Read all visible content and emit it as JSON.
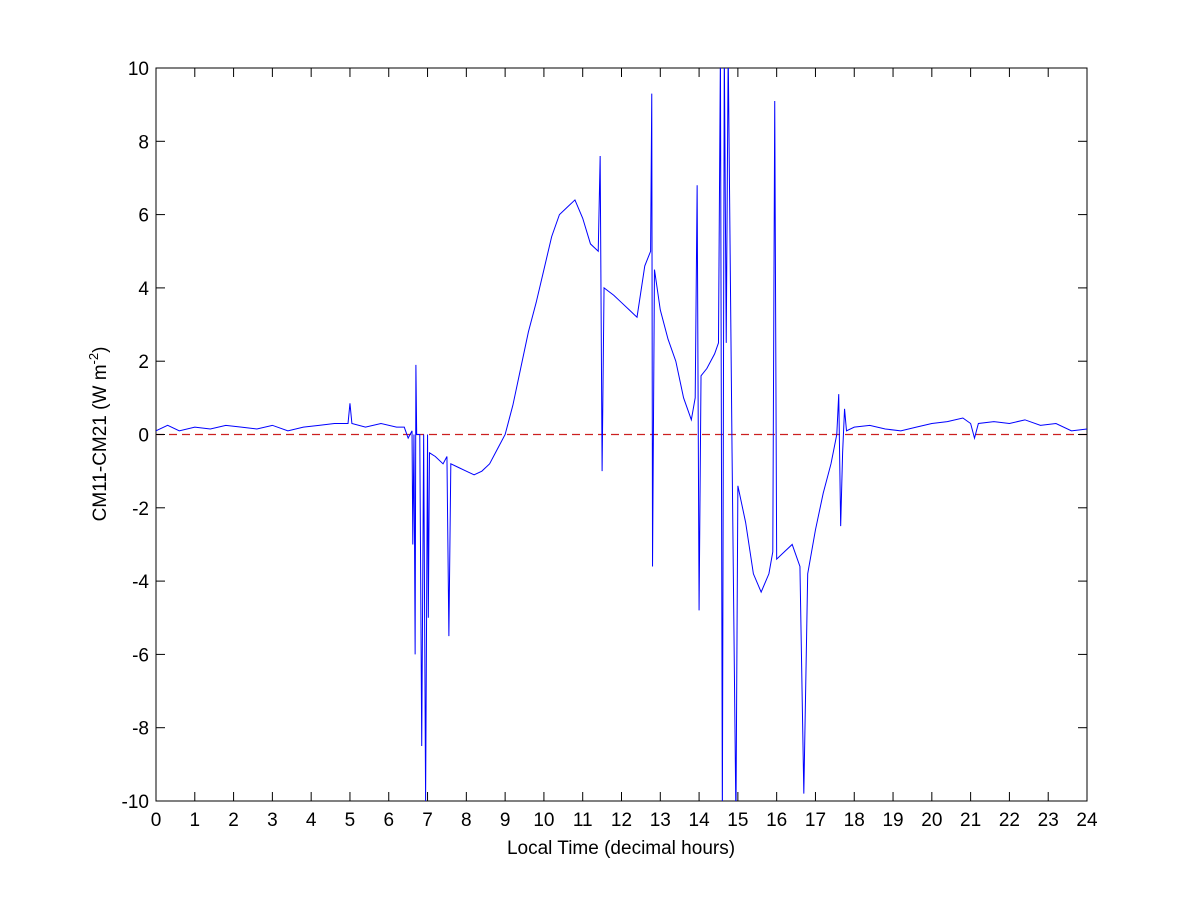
{
  "chart_data": {
    "type": "line",
    "xlabel": "Local Time (decimal hours)",
    "ylabel": [
      "CM11-CM21 (W m",
      "-2",
      ")"
    ],
    "x": [
      0,
      0.3,
      0.6,
      1,
      1.4,
      1.8,
      2.2,
      2.6,
      3,
      3.4,
      3.8,
      4.2,
      4.6,
      4.95,
      5,
      5.05,
      5.4,
      5.8,
      6.2,
      6.4,
      6.5,
      6.6,
      6.62,
      6.65,
      6.68,
      6.7,
      6.72,
      6.8,
      6.85,
      6.9,
      6.95,
      7,
      7.02,
      7.05,
      7.2,
      7.4,
      7.5,
      7.55,
      7.6,
      7.8,
      8,
      8.2,
      8.4,
      8.6,
      8.8,
      9,
      9.2,
      9.4,
      9.6,
      9.8,
      10,
      10.2,
      10.4,
      10.6,
      10.8,
      11,
      11.2,
      11.4,
      11.45,
      11.5,
      11.55,
      11.8,
      12,
      12.2,
      12.4,
      12.6,
      12.75,
      12.78,
      12.8,
      12.85,
      13,
      13.2,
      13.4,
      13.6,
      13.8,
      13.9,
      13.95,
      14,
      14.05,
      14.2,
      14.4,
      14.5,
      14.55,
      14.6,
      14.65,
      14.7,
      14.75,
      14.85,
      14.95,
      15,
      15.2,
      15.4,
      15.6,
      15.8,
      15.9,
      15.95,
      16,
      16.2,
      16.4,
      16.6,
      16.7,
      16.8,
      17,
      17.2,
      17.4,
      17.55,
      17.6,
      17.65,
      17.7,
      17.75,
      17.8,
      18,
      18.4,
      18.8,
      19.2,
      19.6,
      20,
      20.4,
      20.8,
      21,
      21.1,
      21.2,
      21.6,
      22,
      22.4,
      22.8,
      23.2,
      23.6,
      24
    ],
    "values": [
      0.1,
      0.25,
      0.1,
      0.2,
      0.15,
      0.25,
      0.2,
      0.15,
      0.25,
      0.1,
      0.2,
      0.25,
      0.3,
      0.3,
      0.85,
      0.3,
      0.2,
      0.3,
      0.2,
      0.2,
      -0.1,
      0.1,
      -3,
      0,
      -6,
      1.9,
      0,
      0,
      -8.5,
      0,
      -10,
      0,
      -5,
      -0.5,
      -0.6,
      -0.8,
      -0.6,
      -5.5,
      -0.8,
      -0.9,
      -1,
      -1.1,
      -1,
      -0.8,
      -0.4,
      0,
      0.8,
      1.8,
      2.8,
      3.6,
      4.5,
      5.4,
      6,
      6.2,
      6.4,
      5.9,
      5.2,
      5,
      7.6,
      -1,
      4,
      3.8,
      3.6,
      3.4,
      3.2,
      4.6,
      5,
      9.3,
      -3.6,
      4.5,
      3.4,
      2.6,
      2,
      1,
      0.4,
      1,
      6.8,
      -4.8,
      1.6,
      1.8,
      2.2,
      2.5,
      10.5,
      -10.5,
      10.5,
      2.5,
      10.5,
      -0.5,
      -10.5,
      -1.4,
      -2.4,
      -3.8,
      -4.3,
      -3.8,
      -3.2,
      9.1,
      -3.4,
      -3.2,
      -3,
      -3.6,
      -9.8,
      -3.8,
      -2.6,
      -1.6,
      -0.8,
      0,
      1.1,
      -2.5,
      -0.5,
      0.7,
      0.1,
      0.2,
      0.25,
      0.15,
      0.1,
      0.2,
      0.3,
      0.35,
      0.45,
      0.3,
      -0.1,
      0.3,
      0.35,
      0.3,
      0.4,
      0.25,
      0.3,
      0.1,
      0.15
    ],
    "color": "#0000ff",
    "reference_line": {
      "value": 0,
      "color": "#cc2020",
      "dashed": true
    },
    "xlim": [
      0,
      24
    ],
    "xticks": [
      0,
      1,
      2,
      3,
      4,
      5,
      6,
      7,
      8,
      9,
      10,
      11,
      12,
      13,
      14,
      15,
      16,
      17,
      18,
      19,
      20,
      21,
      22,
      23,
      24
    ],
    "ylim": [
      -10,
      10
    ],
    "yticks": [
      -10,
      -8,
      -6,
      -4,
      -2,
      0,
      2,
      4,
      6,
      8,
      10
    ],
    "grid": false
  }
}
